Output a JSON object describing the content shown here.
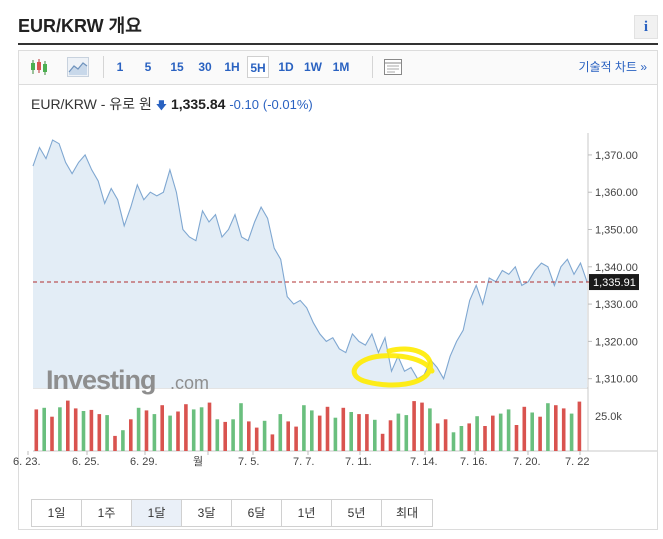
{
  "page": {
    "title": "EUR/KRW 개요",
    "info_icon_glyph": "i"
  },
  "toolbar": {
    "timeframes": [
      "1",
      "5",
      "15",
      "30",
      "1H",
      "5H",
      "1D",
      "1W",
      "1M"
    ],
    "active_timeframe": "5H",
    "tech_chart_link": "기술적 차트 »",
    "icons": [
      "candlestick-icon",
      "area-chart-icon",
      "layout-icon"
    ]
  },
  "quote": {
    "symbol": "EUR/KRW - 유로 원",
    "price": "1,335.84",
    "change": "-0.10",
    "change_pct": "(-0.01%)",
    "direction": "down"
  },
  "watermark": {
    "brand": "Investing",
    "suffix": ".com"
  },
  "colors": {
    "line": "#7fa7d1",
    "area": "#e3edf6",
    "last_price_line": "#b03030",
    "last_price_label_bg": "#1a1a1a",
    "volume_up": "#6abf7e",
    "volume_down": "#d9534f",
    "highlight": "#ffeb00",
    "link": "#2a62c1"
  },
  "chart_data": {
    "type": "area",
    "last_price_label": "1,335.91",
    "last_price": 1335.91,
    "ylim": [
      1307.5,
      1374
    ],
    "y_ticks": [
      {
        "v": 1370,
        "label": "1,370.00"
      },
      {
        "v": 1360,
        "label": "1,360.00"
      },
      {
        "v": 1350,
        "label": "1,350.00"
      },
      {
        "v": 1340,
        "label": "1,340.00"
      },
      {
        "v": 1330,
        "label": "1,330.00"
      },
      {
        "v": 1320,
        "label": "1,320.00"
      },
      {
        "v": 1310,
        "label": "1,310.00"
      }
    ],
    "x_ticks": [
      "6. 23.",
      "6. 25.",
      "6. 29.",
      "월",
      "7. 5.",
      "7. 7.",
      "7. 11.",
      "7. 14.",
      "7. 16.",
      "7. 20.",
      "7. 22"
    ],
    "series": [
      {
        "values": [
          1367,
          1372,
          1369,
          1374,
          1373,
          1368,
          1365,
          1368,
          1370,
          1366,
          1363,
          1357,
          1361,
          1358,
          1351,
          1356,
          1362,
          1358,
          1360,
          1359,
          1360,
          1366,
          1360,
          1350,
          1348,
          1347,
          1355,
          1352,
          1354,
          1348,
          1350,
          1354,
          1348,
          1347,
          1352,
          1356,
          1353,
          1345,
          1342,
          1332,
          1330,
          1331,
          1329,
          1325,
          1322,
          1320,
          1321,
          1318,
          1317,
          1322,
          1320,
          1319,
          1322,
          1317,
          1321,
          1312,
          1316,
          1312,
          1313,
          1310,
          1311,
          1315,
          1313,
          1310,
          1316,
          1320,
          1323,
          1331,
          1335,
          1330,
          1337,
          1336,
          1339,
          1338,
          1340,
          1335,
          1336,
          1339,
          1341,
          1340,
          1335,
          1340,
          1342,
          1338,
          1341,
          1336
        ]
      }
    ],
    "volume": {
      "axis_label": "25.0k",
      "values": [
        0.8,
        0.83,
        0.66,
        0.84,
        0.97,
        0.82,
        0.77,
        0.79,
        0.71,
        0.69,
        0.29,
        0.4,
        0.61,
        0.83,
        0.78,
        0.71,
        0.88,
        0.68,
        0.76,
        0.9,
        0.8,
        0.84,
        0.93,
        0.61,
        0.56,
        0.61,
        0.92,
        0.57,
        0.45,
        0.58,
        0.32,
        0.71,
        0.57,
        0.47,
        0.88,
        0.78,
        0.68,
        0.85,
        0.64,
        0.83,
        0.75,
        0.71,
        0.71,
        0.6,
        0.33,
        0.59,
        0.72,
        0.69,
        0.96,
        0.93,
        0.82,
        0.53,
        0.61,
        0.36,
        0.48,
        0.53,
        0.67,
        0.48,
        0.68,
        0.72,
        0.8,
        0.5,
        0.85,
        0.74,
        0.66,
        0.92,
        0.88,
        0.82,
        0.72,
        0.95
      ],
      "up": [
        0,
        1,
        0,
        1,
        0,
        0,
        1,
        0,
        0,
        1,
        0,
        1,
        0,
        1,
        0,
        1,
        0,
        1,
        0,
        0,
        1,
        1,
        0,
        1,
        0,
        1,
        1,
        0,
        0,
        1,
        0,
        1,
        0,
        0,
        1,
        1,
        0,
        0,
        1,
        0,
        1,
        0,
        0,
        1,
        0,
        0,
        1,
        1,
        0,
        0,
        1,
        0,
        0,
        1,
        1,
        0,
        1,
        0,
        0,
        1,
        1,
        0,
        0,
        1,
        0,
        1,
        0,
        0,
        1,
        0
      ]
    }
  },
  "range_buttons": [
    "1일",
    "1주",
    "1달",
    "3달",
    "6달",
    "1년",
    "5년",
    "최대"
  ],
  "active_range": "1달"
}
